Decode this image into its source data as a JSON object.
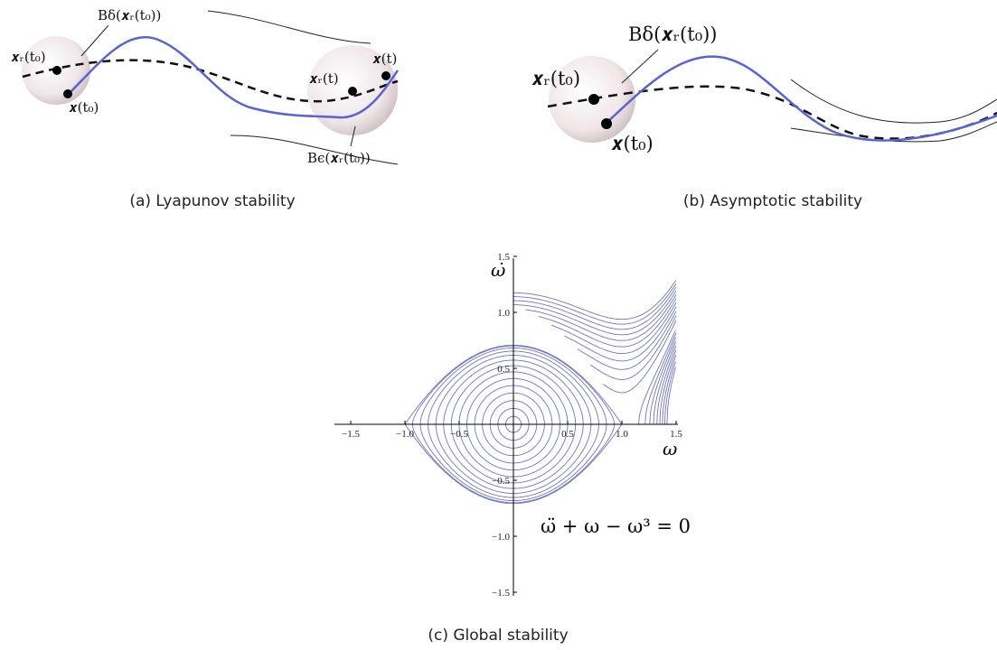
{
  "figure": {
    "panels": [
      {
        "caption": "(a)  Lyapunov stability",
        "labels": [
          "𝒙ᵣ(t₀)",
          "Bδ(𝒙ᵣ(t₀))",
          "𝒙(t₀)",
          "𝒙ᵣ(t)",
          "𝒙(t)",
          "Bϵ(𝒙ᵣ(t₀))"
        ]
      },
      {
        "caption": "(b)  Asymptotic stability",
        "labels": [
          "Bδ(𝒙ᵣ(t₀))",
          "𝒙ᵣ(t₀)",
          "𝒙(t₀)"
        ]
      },
      {
        "caption": "(c)  Global stability",
        "x_label": "ω",
        "y_label": "ω̇",
        "x_ticks": [
          "−1.5",
          "−1.0",
          "−0.5",
          "0.5",
          "1.0",
          "1.5"
        ],
        "y_ticks": [
          "1.5",
          "1.0",
          "0.5",
          "−0.5",
          "−1.0",
          "−1.5"
        ],
        "equation": "ω̈ + ω − ω³ = 0"
      }
    ]
  }
}
